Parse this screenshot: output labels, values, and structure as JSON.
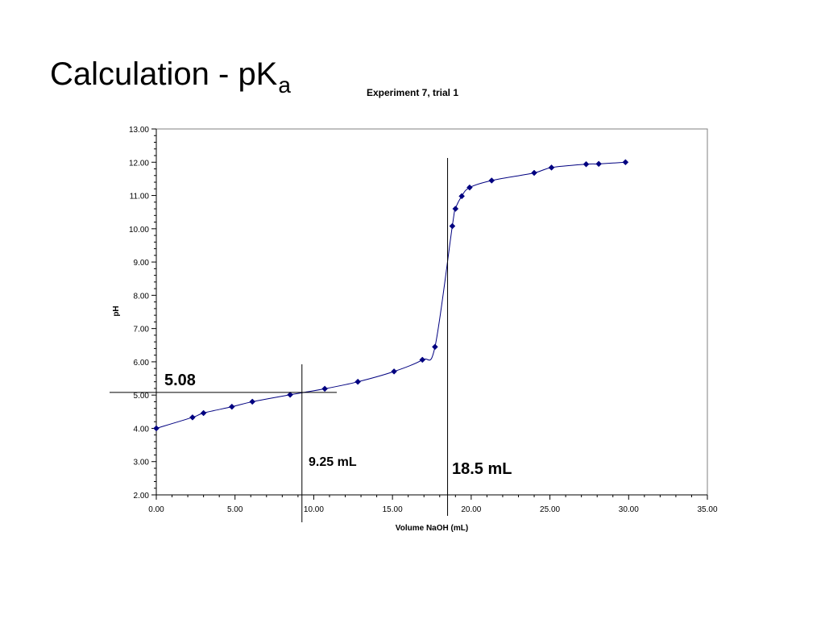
{
  "slide": {
    "title_main": "Calculation - pK",
    "title_sub": "a"
  },
  "chart_data": {
    "type": "scatter",
    "title": "Experiment 7, trial 1",
    "xlabel": "Volume NaOH (mL)",
    "ylabel": "pH",
    "xlim": [
      0,
      35
    ],
    "ylim": [
      2,
      13
    ],
    "x_ticks": [
      "0.00",
      "5.00",
      "10.00",
      "15.00",
      "20.00",
      "25.00",
      "30.00",
      "35.00"
    ],
    "y_ticks": [
      "2.00",
      "3.00",
      "4.00",
      "5.00",
      "6.00",
      "7.00",
      "8.00",
      "9.00",
      "10.00",
      "11.00",
      "12.00",
      "13.00"
    ],
    "grid": false,
    "marker": "diamond",
    "color": "#000080",
    "series": [
      {
        "x": [
          0.0,
          2.3,
          3.0,
          4.8,
          6.1,
          8.5,
          10.7,
          12.8,
          15.1,
          16.9,
          17.7,
          18.8,
          19.0,
          19.4,
          19.9,
          21.3,
          24.0,
          25.1,
          27.3,
          28.1,
          29.8
        ],
        "y": [
          4.0,
          4.33,
          4.46,
          4.65,
          4.8,
          5.01,
          5.19,
          5.4,
          5.71,
          6.06,
          6.45,
          10.08,
          10.6,
          10.98,
          11.24,
          11.45,
          11.68,
          11.84,
          11.94,
          11.95,
          12.0
        ]
      }
    ],
    "annotations": [
      {
        "text": "5.08",
        "label": "half-equivalence pH"
      },
      {
        "text": "9.25 mL",
        "label": "half-equivalence volume"
      },
      {
        "text": "18.5 mL",
        "label": "equivalence volume"
      }
    ],
    "reference_lines": [
      {
        "orientation": "horizontal",
        "y": 5.08
      },
      {
        "orientation": "vertical",
        "x": 9.25
      },
      {
        "orientation": "vertical",
        "x": 18.5
      }
    ]
  }
}
